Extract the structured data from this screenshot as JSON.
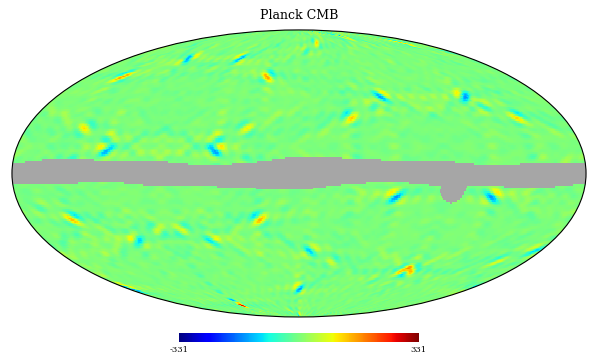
{
  "chart_data": {
    "type": "heatmap",
    "title": "Planck CMB",
    "colorbar_range": [
      -331,
      331
    ],
    "colorbar_ticks": [
      -331,
      331
    ],
    "tick_labels": false,
    "grid": false
  }
}
